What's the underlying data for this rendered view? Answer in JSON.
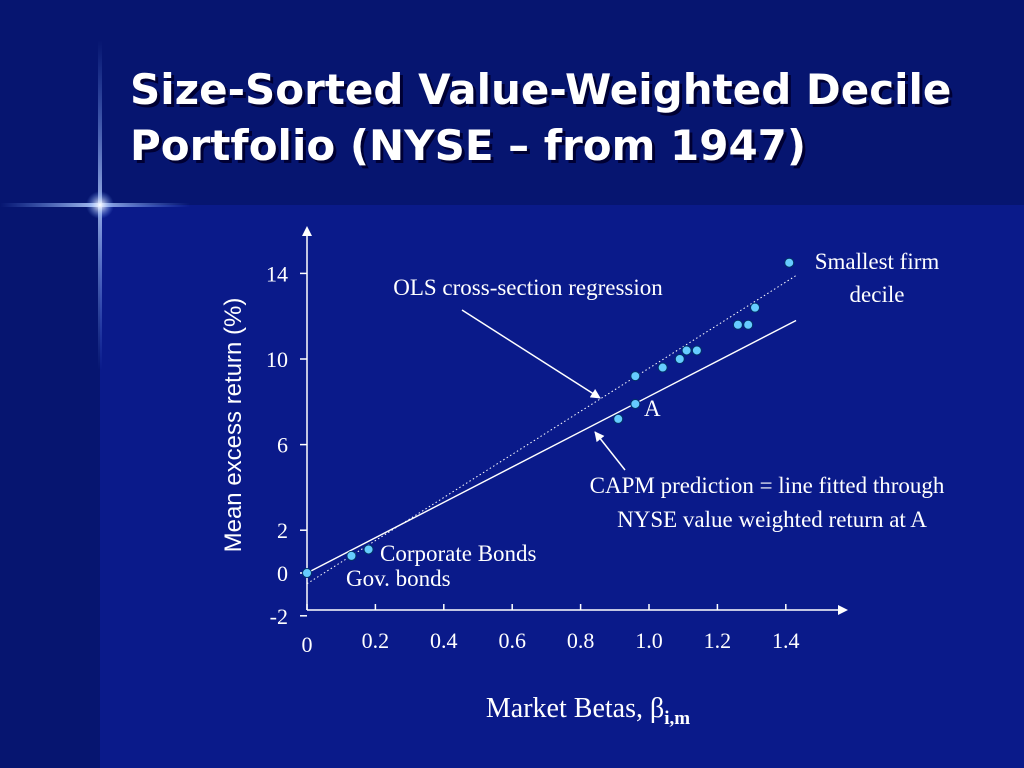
{
  "slide": {
    "title_lines": [
      "Size-Sorted Value-Weighted Decile",
      "Portfolio (NYSE – from 1947)"
    ],
    "colors": {
      "background": "#0a1a8a",
      "header_band": "#061570",
      "marker_fill": "#66ccff",
      "text": "#ffffff"
    }
  },
  "chart_data": {
    "type": "scatter",
    "xlabel": {
      "text": "Market Betas, ",
      "symbol": "β",
      "subscript": "i,m"
    },
    "ylabel": "Mean excess return (%)",
    "xlim": [
      0,
      1.55
    ],
    "ylim": [
      -2,
      16
    ],
    "x_ticks": [
      {
        "value": 0,
        "label": "0"
      },
      {
        "value": 0.2,
        "label": "0.2"
      },
      {
        "value": 0.4,
        "label": "0.4"
      },
      {
        "value": 0.6,
        "label": "0.6"
      },
      {
        "value": 0.8,
        "label": "0.8"
      },
      {
        "value": 1.0,
        "label": "1.0"
      },
      {
        "value": 1.2,
        "label": "1.2"
      },
      {
        "value": 1.4,
        "label": "1.4"
      }
    ],
    "y_ticks": [
      {
        "value": -2,
        "label": "-2"
      },
      {
        "value": 0,
        "label": "0"
      },
      {
        "value": 2,
        "label": "2"
      },
      {
        "value": 6,
        "label": "6"
      },
      {
        "value": 10,
        "label": "10"
      },
      {
        "value": 14,
        "label": "14"
      }
    ],
    "points": [
      {
        "x": 0.0,
        "y": 0.0
      },
      {
        "x": 0.13,
        "y": 0.8
      },
      {
        "x": 0.18,
        "y": 1.1
      },
      {
        "x": 0.91,
        "y": 7.2
      },
      {
        "x": 0.96,
        "y": 7.9
      },
      {
        "x": 0.96,
        "y": 9.2
      },
      {
        "x": 1.04,
        "y": 9.6
      },
      {
        "x": 1.09,
        "y": 10.0
      },
      {
        "x": 1.11,
        "y": 10.4
      },
      {
        "x": 1.14,
        "y": 10.4
      },
      {
        "x": 1.26,
        "y": 11.6
      },
      {
        "x": 1.29,
        "y": 11.6
      },
      {
        "x": 1.31,
        "y": 12.4
      },
      {
        "x": 1.41,
        "y": 14.5
      }
    ],
    "lines": [
      {
        "style": "solid",
        "x": [
          0.0,
          1.43
        ],
        "y": [
          0.0,
          11.8
        ]
      },
      {
        "style": "dotted",
        "x": [
          0.0,
          1.43
        ],
        "y": [
          -0.5,
          13.9
        ]
      }
    ],
    "annotations": {
      "smallest_firm": [
        "Smallest firm",
        "decile"
      ],
      "ols": "OLS cross-section regression",
      "point_a": "A",
      "capm": [
        "CAPM prediction = line fitted through",
        "NYSE value weighted return at A"
      ],
      "corporate_bonds": "Corporate Bonds",
      "gov_bonds": "Gov. bonds"
    }
  }
}
